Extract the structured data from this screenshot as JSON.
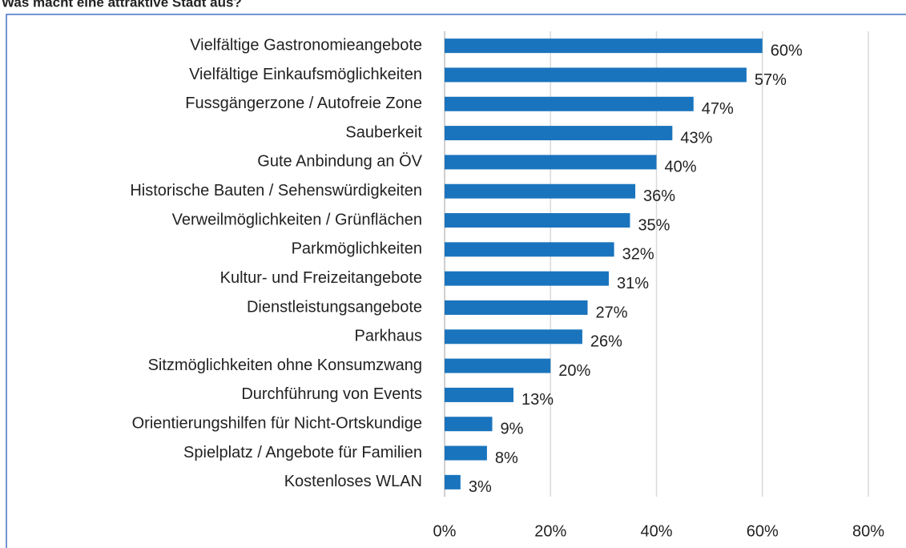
{
  "chart_data": {
    "type": "bar",
    "orientation": "horizontal",
    "title": "Was macht eine attraktive Stadt aus?",
    "categories": [
      "Vielfältige Gastronomieangebote",
      "Vielfältige Einkaufsmöglichkeiten",
      "Fussgängerzone / Autofreie Zone",
      "Sauberkeit",
      "Gute Anbindung an ÖV",
      "Historische Bauten / Sehenswürdigkeiten",
      "Verweilmöglichkeiten / Grünflächen",
      "Parkmöglichkeiten",
      "Kultur- und Freizeitangebote",
      "Dienstleistungsangebote",
      "Parkhaus",
      "Sitzmöglichkeiten ohne Konsumzwang",
      "Durchführung von Events",
      "Orientierungshilfen für Nicht-Ortskundige",
      "Spielplatz / Angebote für Familien",
      "Kostenloses WLAN"
    ],
    "values": [
      60,
      57,
      47,
      43,
      40,
      36,
      35,
      32,
      31,
      27,
      26,
      20,
      13,
      9,
      8,
      3
    ],
    "value_labels": [
      "60%",
      "57%",
      "47%",
      "43%",
      "40%",
      "36%",
      "35%",
      "32%",
      "31%",
      "27%",
      "26%",
      "20%",
      "13%",
      "9%",
      "8%",
      "3%"
    ],
    "color": "#1a74bd",
    "xlim": [
      0,
      80
    ],
    "xticks": [
      {
        "value": 0,
        "label": "0%"
      },
      {
        "value": 20,
        "label": "20%"
      },
      {
        "value": 40,
        "label": "40%"
      },
      {
        "value": 60,
        "label": "60%"
      },
      {
        "value": 80,
        "label": "80%"
      }
    ],
    "grid": true
  }
}
